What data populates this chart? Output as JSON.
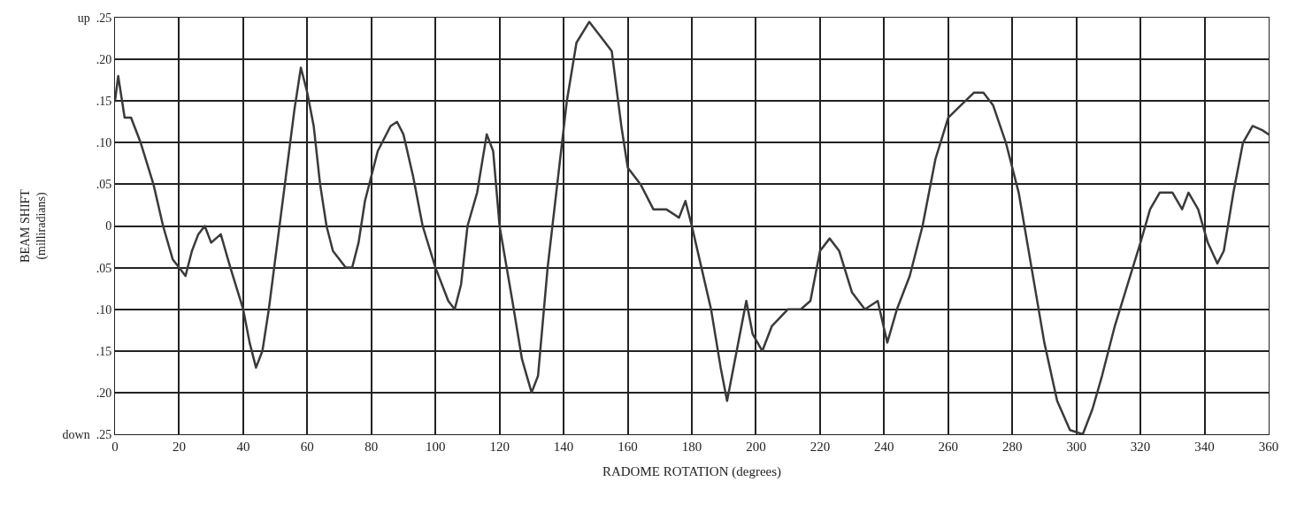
{
  "chart_data": {
    "type": "line",
    "xlabel": "RADOME ROTATION (degrees)",
    "ylabel": "BEAM SHIFT\n(milliradians)",
    "x": [
      0,
      1,
      3,
      5,
      8,
      12,
      15,
      18,
      20,
      22,
      24,
      26,
      28,
      30,
      33,
      36,
      40,
      42,
      44,
      46,
      48,
      50,
      53,
      56,
      58,
      60,
      62,
      64,
      66,
      68,
      72,
      74,
      76,
      78,
      82,
      86,
      88,
      90,
      93,
      96,
      100,
      104,
      106,
      108,
      110,
      113,
      116,
      118,
      120,
      124,
      127,
      130,
      132,
      135,
      138,
      141,
      144,
      148,
      152,
      155,
      158,
      160,
      164,
      168,
      172,
      176,
      178,
      180,
      183,
      186,
      189,
      191,
      194,
      197,
      199,
      202,
      205,
      210,
      214,
      217,
      220,
      223,
      226,
      230,
      234,
      238,
      241,
      244,
      248,
      252,
      256,
      260,
      264,
      268,
      271,
      274,
      278,
      282,
      286,
      290,
      294,
      298,
      302,
      305,
      308,
      312,
      316,
      320,
      323,
      326,
      330,
      333,
      335,
      338,
      341,
      344,
      346,
      349,
      352,
      355,
      358,
      360
    ],
    "series": [
      {
        "color": "#3a3a3a",
        "values": [
          0.15,
          0.18,
          0.13,
          0.13,
          0.1,
          0.05,
          0.0,
          -0.04,
          -0.05,
          -0.06,
          -0.03,
          -0.01,
          0.0,
          -0.02,
          -0.01,
          -0.05,
          -0.1,
          -0.14,
          -0.17,
          -0.15,
          -0.1,
          -0.04,
          0.05,
          0.14,
          0.19,
          0.16,
          0.12,
          0.05,
          0.0,
          -0.03,
          -0.05,
          -0.05,
          -0.02,
          0.03,
          0.09,
          0.12,
          0.125,
          0.11,
          0.06,
          0.0,
          -0.05,
          -0.09,
          -0.1,
          -0.07,
          0.0,
          0.04,
          0.11,
          0.09,
          0.0,
          -0.09,
          -0.16,
          -0.2,
          -0.18,
          -0.05,
          0.05,
          0.15,
          0.22,
          0.245,
          0.225,
          0.21,
          0.12,
          0.07,
          0.05,
          0.02,
          0.02,
          0.01,
          0.03,
          0.0,
          -0.05,
          -0.1,
          -0.17,
          -0.21,
          -0.15,
          -0.09,
          -0.13,
          -0.15,
          -0.12,
          -0.1,
          -0.1,
          -0.09,
          -0.03,
          -0.015,
          -0.03,
          -0.08,
          -0.1,
          -0.09,
          -0.14,
          -0.1,
          -0.06,
          0.0,
          0.08,
          0.13,
          0.145,
          0.16,
          0.16,
          0.145,
          0.1,
          0.04,
          -0.05,
          -0.14,
          -0.21,
          -0.245,
          -0.25,
          -0.22,
          -0.18,
          -0.12,
          -0.07,
          -0.02,
          0.02,
          0.04,
          0.04,
          0.02,
          0.04,
          0.02,
          -0.02,
          -0.045,
          -0.03,
          0.04,
          0.1,
          0.12,
          0.115,
          0.11
        ]
      }
    ],
    "xlim": [
      0,
      360
    ],
    "xticks": [
      0,
      20,
      40,
      60,
      80,
      100,
      120,
      140,
      160,
      180,
      200,
      220,
      240,
      260,
      280,
      300,
      320,
      340,
      360
    ],
    "ylim": [
      -0.25,
      0.25
    ],
    "yticks": [
      {
        "value": 0.25,
        "label": "up  .25"
      },
      {
        "value": 0.2,
        "label": ".20"
      },
      {
        "value": 0.15,
        "label": ".15"
      },
      {
        "value": 0.1,
        "label": ".10"
      },
      {
        "value": 0.05,
        "label": ".05"
      },
      {
        "value": 0,
        "label": "0"
      },
      {
        "value": -0.05,
        "label": ".05"
      },
      {
        "value": -0.1,
        "label": ".10"
      },
      {
        "value": -0.15,
        "label": ".15"
      },
      {
        "value": -0.2,
        "label": ".20"
      },
      {
        "value": -0.25,
        "label": "down  .25"
      }
    ],
    "grid": true,
    "marker": "none",
    "line_style": "solid"
  }
}
